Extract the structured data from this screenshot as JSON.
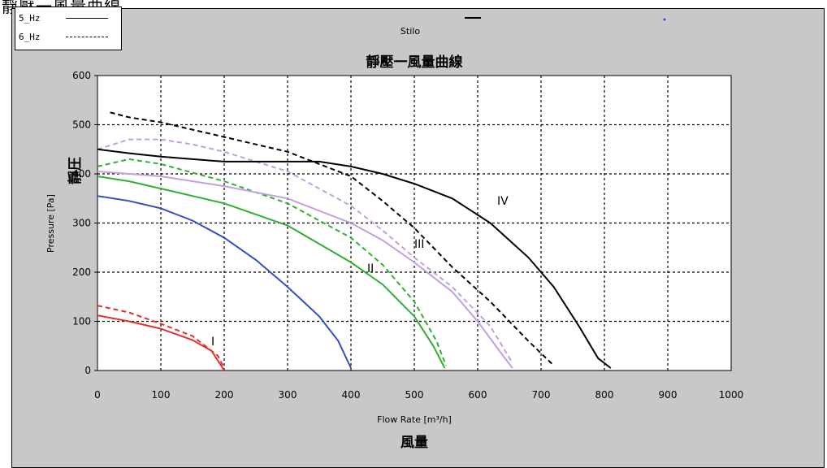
{
  "page": {
    "title": "靜壓一風量曲線"
  },
  "legend": {
    "items": [
      {
        "label": "5_Hz",
        "style": "solid"
      },
      {
        "label": "6_Hz",
        "style": "dashed"
      }
    ]
  },
  "top_legend": {
    "label": "Stilo",
    "accent": "#2a4fd6"
  },
  "chart_data": {
    "type": "line",
    "title": "靜壓一風量曲線",
    "xlabel": "Flow Rate [m³/h]",
    "xlabel_cn": "風量",
    "ylabel": "Pressure [Pa]",
    "ylabel_cn": "靜圧",
    "xlim": [
      0,
      1000
    ],
    "ylim": [
      0,
      600
    ],
    "x_ticks": [
      "0",
      "100",
      "200",
      "300",
      "400",
      "500",
      "600",
      "700",
      "800",
      "900",
      "1000"
    ],
    "y_ticks": [
      "0",
      "100",
      "200",
      "300",
      "400",
      "500",
      "600"
    ],
    "grid": true,
    "annotations": [
      "I",
      "II",
      "III",
      "IV"
    ],
    "series": [
      {
        "color": "#e03030",
        "style": "solid",
        "points": [
          [
            0,
            112
          ],
          [
            50,
            100
          ],
          [
            100,
            85
          ],
          [
            150,
            62
          ],
          [
            180,
            40
          ],
          [
            200,
            0
          ]
        ]
      },
      {
        "color": "#e03030",
        "style": "dashed",
        "points": [
          [
            0,
            132
          ],
          [
            50,
            118
          ],
          [
            100,
            95
          ],
          [
            150,
            70
          ],
          [
            190,
            30
          ],
          [
            200,
            5
          ]
        ]
      },
      {
        "color": "#3050c0",
        "style": "solid",
        "points": [
          [
            0,
            355
          ],
          [
            50,
            345
          ],
          [
            100,
            330
          ],
          [
            150,
            305
          ],
          [
            200,
            270
          ],
          [
            250,
            225
          ],
          [
            300,
            170
          ],
          [
            350,
            110
          ],
          [
            380,
            60
          ],
          [
            400,
            5
          ]
        ]
      },
      {
        "color": "#30b030",
        "style": "solid",
        "points": [
          [
            0,
            395
          ],
          [
            50,
            385
          ],
          [
            100,
            370
          ],
          [
            200,
            340
          ],
          [
            300,
            295
          ],
          [
            400,
            220
          ],
          [
            450,
            175
          ],
          [
            500,
            110
          ],
          [
            530,
            50
          ],
          [
            548,
            5
          ]
        ]
      },
      {
        "color": "#30b030",
        "style": "dashed",
        "points": [
          [
            0,
            415
          ],
          [
            50,
            430
          ],
          [
            100,
            420
          ],
          [
            200,
            385
          ],
          [
            300,
            340
          ],
          [
            400,
            270
          ],
          [
            450,
            215
          ],
          [
            500,
            140
          ],
          [
            535,
            60
          ],
          [
            550,
            10
          ]
        ]
      },
      {
        "color": "#c0a0e0",
        "style": "solid",
        "points": [
          [
            0,
            405
          ],
          [
            50,
            400
          ],
          [
            100,
            395
          ],
          [
            200,
            375
          ],
          [
            300,
            350
          ],
          [
            400,
            300
          ],
          [
            450,
            265
          ],
          [
            500,
            220
          ],
          [
            560,
            160
          ],
          [
            600,
            100
          ],
          [
            640,
            30
          ],
          [
            655,
            5
          ]
        ]
      },
      {
        "color": "#c0a0e0",
        "style": "dashed",
        "points": [
          [
            0,
            450
          ],
          [
            50,
            470
          ],
          [
            100,
            470
          ],
          [
            150,
            460
          ],
          [
            200,
            445
          ],
          [
            300,
            405
          ],
          [
            400,
            335
          ],
          [
            450,
            285
          ],
          [
            500,
            230
          ],
          [
            560,
            170
          ],
          [
            620,
            90
          ],
          [
            655,
            15
          ]
        ]
      },
      {
        "color": "#000000",
        "style": "solid",
        "points": [
          [
            0,
            450
          ],
          [
            50,
            442
          ],
          [
            100,
            435
          ],
          [
            150,
            430
          ],
          [
            200,
            425
          ],
          [
            350,
            425
          ],
          [
            400,
            415
          ],
          [
            450,
            400
          ],
          [
            500,
            380
          ],
          [
            560,
            350
          ],
          [
            620,
            300
          ],
          [
            680,
            230
          ],
          [
            720,
            170
          ],
          [
            760,
            90
          ],
          [
            790,
            25
          ],
          [
            810,
            5
          ]
        ]
      },
      {
        "color": "#000000",
        "style": "dashed",
        "points": [
          [
            20,
            525
          ],
          [
            50,
            515
          ],
          [
            100,
            505
          ],
          [
            150,
            490
          ],
          [
            200,
            475
          ],
          [
            300,
            445
          ],
          [
            400,
            395
          ],
          [
            450,
            345
          ],
          [
            500,
            290
          ],
          [
            560,
            210
          ],
          [
            620,
            140
          ],
          [
            680,
            60
          ],
          [
            720,
            10
          ]
        ]
      }
    ]
  }
}
